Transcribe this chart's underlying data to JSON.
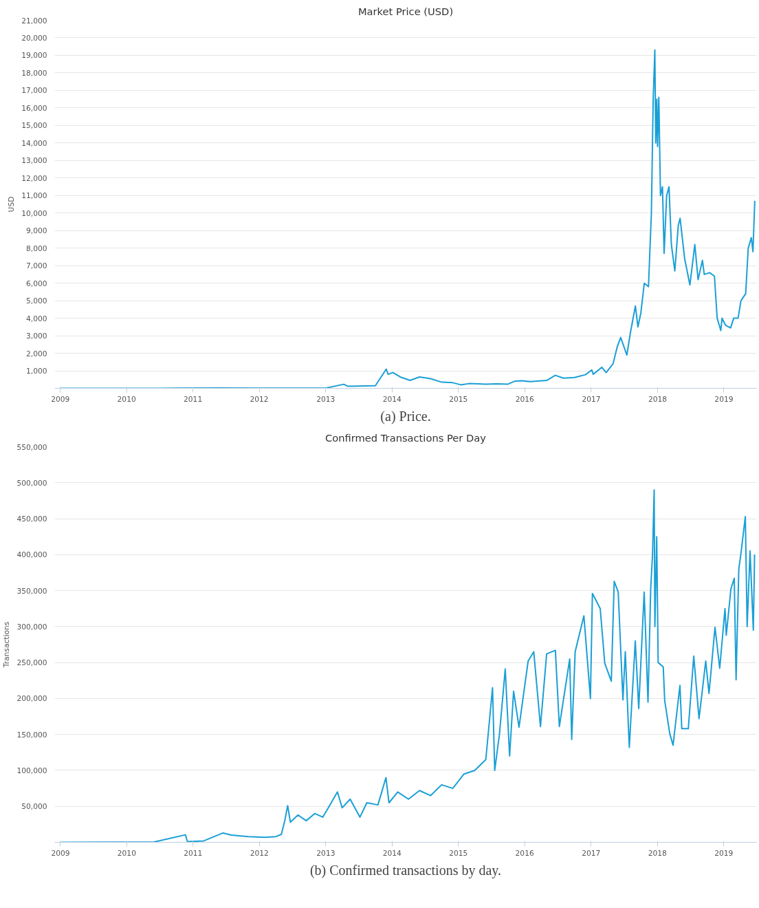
{
  "chart_data": [
    {
      "type": "line",
      "title": "Market Price (USD)",
      "ylabel": "USD",
      "annotations": [
        "(a) Price."
      ],
      "grid": "y",
      "marker": "none",
      "color": "#1a9fd6",
      "xlim": [
        "2008-12-01",
        "2019-06-30"
      ],
      "xticks": [
        "2009",
        "2010",
        "2011",
        "2012",
        "2013",
        "2014",
        "2015",
        "2016",
        "2017",
        "2018",
        "2019"
      ],
      "ylim": [
        0,
        21000
      ],
      "yticks": [
        {
          "value": 1000,
          "label": "1,000"
        },
        {
          "value": 2000,
          "label": "2,000"
        },
        {
          "value": 3000,
          "label": "3,000"
        },
        {
          "value": 4000,
          "label": "4,000"
        },
        {
          "value": 5000,
          "label": "5,000"
        },
        {
          "value": 6000,
          "label": "6,000"
        },
        {
          "value": 7000,
          "label": "7,000"
        },
        {
          "value": 8000,
          "label": "8,000"
        },
        {
          "value": 9000,
          "label": "9,000"
        },
        {
          "value": 10000,
          "label": "10,000"
        },
        {
          "value": 11000,
          "label": "11,000"
        },
        {
          "value": 12000,
          "label": "12,000"
        },
        {
          "value": 13000,
          "label": "13,000"
        },
        {
          "value": 14000,
          "label": "14,000"
        },
        {
          "value": 15000,
          "label": "15,000"
        },
        {
          "value": 16000,
          "label": "16,000"
        },
        {
          "value": 17000,
          "label": "17,000"
        },
        {
          "value": 18000,
          "label": "18,000"
        },
        {
          "value": 19000,
          "label": "19,000"
        },
        {
          "value": 20000,
          "label": "20,000"
        },
        {
          "value": 21000,
          "label": "21,000"
        }
      ],
      "x": [
        "2009-01-03",
        "2010-07-01",
        "2011-06-01",
        "2012-01-01",
        "2013-01-01",
        "2013-04-10",
        "2013-05-01",
        "2013-10-01",
        "2013-11-30",
        "2013-12-10",
        "2014-01-05",
        "2014-02-15",
        "2014-04-10",
        "2014-06-01",
        "2014-08-01",
        "2014-10-01",
        "2014-12-01",
        "2015-01-14",
        "2015-03-01",
        "2015-06-01",
        "2015-08-01",
        "2015-10-01",
        "2015-11-05",
        "2015-12-15",
        "2016-02-01",
        "2016-05-01",
        "2016-06-17",
        "2016-08-01",
        "2016-10-01",
        "2016-12-01",
        "2017-01-04",
        "2017-01-12",
        "2017-02-28",
        "2017-03-24",
        "2017-05-01",
        "2017-05-25",
        "2017-06-12",
        "2017-07-16",
        "2017-08-05",
        "2017-09-01",
        "2017-09-15",
        "2017-10-01",
        "2017-10-20",
        "2017-11-12",
        "2017-11-28",
        "2017-12-08",
        "2017-12-17",
        "2017-12-22",
        "2017-12-28",
        "2018-01-01",
        "2018-01-08",
        "2018-01-17",
        "2018-01-28",
        "2018-02-06",
        "2018-02-20",
        "2018-03-05",
        "2018-03-18",
        "2018-04-06",
        "2018-04-25",
        "2018-05-05",
        "2018-05-30",
        "2018-06-28",
        "2018-07-25",
        "2018-08-12",
        "2018-09-05",
        "2018-09-15",
        "2018-10-15",
        "2018-11-10",
        "2018-11-25",
        "2018-12-15",
        "2018-12-22",
        "2019-01-10",
        "2019-02-07",
        "2019-02-24",
        "2019-03-20",
        "2019-04-05",
        "2019-05-01",
        "2019-05-15",
        "2019-06-01",
        "2019-06-10",
        "2019-06-20"
      ],
      "values": [
        0,
        0,
        20,
        5,
        13,
        230,
        120,
        150,
        1100,
        800,
        900,
        650,
        450,
        650,
        550,
        350,
        320,
        200,
        270,
        240,
        260,
        240,
        400,
        430,
        380,
        450,
        740,
        580,
        620,
        780,
        1050,
        800,
        1200,
        900,
        1400,
        2400,
        2900,
        1900,
        3200,
        4700,
        3500,
        4300,
        6000,
        5800,
        10000,
        16500,
        19300,
        14000,
        16500,
        13800,
        16600,
        11000,
        11500,
        7700,
        11000,
        11500,
        8200,
        6700,
        9300,
        9700,
        7400,
        5900,
        8200,
        6200,
        7300,
        6500,
        6600,
        6400,
        4000,
        3300,
        4000,
        3600,
        3450,
        4000,
        4000,
        5000,
        5400,
        8000,
        8600,
        7800,
        10700
      ]
    },
    {
      "type": "line",
      "title": "Confirmed Transactions Per Day",
      "ylabel": "Transactions",
      "annotations": [
        "(b) Confirmed transactions by day."
      ],
      "grid": "y",
      "marker": "none",
      "color": "#1a9fd6",
      "xlim": [
        "2008-11-30",
        "2019-07-01"
      ],
      "xticks": [
        "2009",
        "2010",
        "2011",
        "2012",
        "2013",
        "2014",
        "2015",
        "2016",
        "2017",
        "2018",
        "2019"
      ],
      "ylim": [
        0,
        550000
      ],
      "yticks": [
        {
          "value": 50000,
          "label": "50,000"
        },
        {
          "value": 100000,
          "label": "100,000"
        },
        {
          "value": 150000,
          "label": "150,000"
        },
        {
          "value": 200000,
          "label": "200,000"
        },
        {
          "value": 250000,
          "label": "250,000"
        },
        {
          "value": 300000,
          "label": "300,000"
        },
        {
          "value": 350000,
          "label": "350,000"
        },
        {
          "value": 400000,
          "label": "400,000"
        },
        {
          "value": 450000,
          "label": "450,000"
        },
        {
          "value": 500000,
          "label": "500,000"
        },
        {
          "value": 550000,
          "label": "550,000"
        }
      ],
      "x": [
        "2009-01-03",
        "2010-06-01",
        "2010-11-20",
        "2010-12-01",
        "2011-03-01",
        "2011-06-15",
        "2011-08-01",
        "2011-11-01",
        "2012-02-01",
        "2012-04-01",
        "2012-05-01",
        "2012-05-20",
        "2012-06-05",
        "2012-06-20",
        "2012-08-01",
        "2012-09-15",
        "2012-11-01",
        "2012-12-15",
        "2013-01-15",
        "2013-03-06",
        "2013-04-01",
        "2013-05-15",
        "2013-07-08",
        "2013-08-15",
        "2013-10-15",
        "2013-11-28",
        "2013-12-15",
        "2014-02-01",
        "2014-04-01",
        "2014-06-01",
        "2014-08-01",
        "2014-10-01",
        "2014-12-01",
        "2015-02-01",
        "2015-04-01",
        "2015-06-01",
        "2015-07-08",
        "2015-07-20",
        "2015-08-15",
        "2015-09-16",
        "2015-10-10",
        "2015-11-01",
        "2015-12-01",
        "2016-01-20",
        "2016-02-20",
        "2016-03-28",
        "2016-05-01",
        "2016-06-18",
        "2016-07-10",
        "2016-09-05",
        "2016-09-16",
        "2016-10-05",
        "2016-11-22",
        "2016-12-28",
        "2017-01-08",
        "2017-02-20",
        "2017-03-17",
        "2017-04-22",
        "2017-05-08",
        "2017-05-30",
        "2017-06-25",
        "2017-07-08",
        "2017-07-30",
        "2017-09-01",
        "2017-09-20",
        "2017-10-20",
        "2017-11-10",
        "2017-11-25",
        "2017-12-05",
        "2017-12-14",
        "2017-12-18",
        "2017-12-28",
        "2018-01-05",
        "2018-02-02",
        "2018-02-10",
        "2018-03-10",
        "2018-03-28",
        "2018-05-05",
        "2018-05-15",
        "2018-06-20",
        "2018-07-20",
        "2018-08-18",
        "2018-09-24",
        "2018-10-12",
        "2018-11-14",
        "2018-12-10",
        "2019-01-08",
        "2019-01-15",
        "2019-02-10",
        "2019-02-28",
        "2019-03-10",
        "2019-03-25",
        "2019-04-05",
        "2019-04-30",
        "2019-05-10",
        "2019-05-26",
        "2019-06-13",
        "2019-06-20"
      ],
      "values": [
        100,
        500,
        10400,
        1000,
        2000,
        13000,
        10000,
        8000,
        7000,
        8000,
        11000,
        30000,
        51000,
        28000,
        38000,
        30000,
        40000,
        35000,
        48000,
        70000,
        48000,
        60000,
        35000,
        55000,
        52000,
        90000,
        55000,
        70000,
        60000,
        72000,
        65000,
        80000,
        75000,
        95000,
        100000,
        115000,
        215000,
        100000,
        150000,
        241000,
        120000,
        210000,
        160000,
        252000,
        265000,
        161000,
        262000,
        267000,
        161000,
        255000,
        143000,
        265000,
        315000,
        200000,
        346000,
        325000,
        249000,
        224000,
        363000,
        348000,
        198000,
        265000,
        132000,
        280000,
        186000,
        348000,
        195000,
        353000,
        400000,
        490000,
        300000,
        425000,
        250000,
        244000,
        197000,
        151000,
        135000,
        218000,
        158000,
        158000,
        259000,
        172000,
        252000,
        207000,
        299000,
        242000,
        325000,
        288000,
        353000,
        367000,
        226000,
        380000,
        400000,
        453000,
        300000,
        405000,
        295000,
        400000
      ]
    }
  ]
}
